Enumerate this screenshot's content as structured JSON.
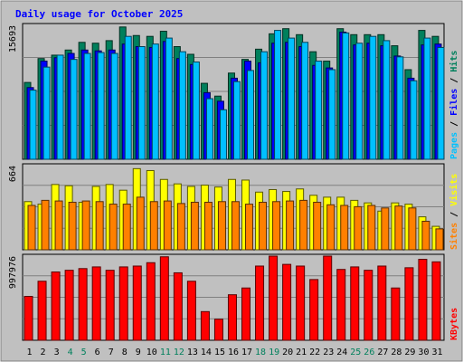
{
  "chart_data": {
    "type": "bar",
    "title": "Daily usage for October 2025",
    "categories": [
      "1",
      "2",
      "3",
      "4",
      "5",
      "6",
      "7",
      "8",
      "9",
      "10",
      "11",
      "12",
      "13",
      "14",
      "15",
      "16",
      "17",
      "18",
      "19",
      "20",
      "21",
      "22",
      "23",
      "24",
      "25",
      "26",
      "27",
      "28",
      "29",
      "30",
      "31"
    ],
    "weekend_days": [
      "4",
      "5",
      "11",
      "12",
      "18",
      "19",
      "25",
      "26"
    ],
    "colors": {
      "title": "#0000ff",
      "background": "#c0c0c0",
      "grid": "#808080",
      "hits": "#00805c",
      "files": "#0000ff",
      "pages": "#00c0ff",
      "visits": "#ffff00",
      "sites": "#ff8000",
      "kbytes": "#ff0000",
      "weekend_label": "#00805c",
      "weekday_label": "#000000"
    },
    "panels": [
      {
        "id": "hits-files-pages",
        "ymax_label": "15693",
        "ymax": 15693,
        "side_label": [
          "Pages",
          " / ",
          "Files",
          " / ",
          "Hits"
        ],
        "side_colors": [
          "#00c0ff",
          "#000000",
          "#0000ff",
          "#000000",
          "#00805c"
        ],
        "series": [
          {
            "name": "Hits",
            "values": [
              9000,
              11800,
              12200,
              12800,
              13700,
              13600,
              13900,
              15500,
              14500,
              14400,
              15000,
              13200,
              12300,
              8900,
              7400,
              10100,
              11700,
              12900,
              14700,
              15300,
              14600,
              12600,
              11500,
              15300,
              14600,
              14600,
              14600,
              13300,
              10500,
              15100,
              14400
            ]
          },
          {
            "name": "Files",
            "values": [
              8400,
              11500,
              11900,
              12400,
              12800,
              12700,
              12800,
              13500,
              13200,
              13100,
              13800,
              11800,
              11100,
              7800,
              6800,
              9500,
              11500,
              11300,
              13600,
              13700,
              13200,
              11000,
              10700,
              14900,
              13400,
              13600,
              13300,
              12100,
              9500,
              13400,
              13500
            ]
          },
          {
            "name": "Pages",
            "values": [
              8100,
              10800,
              12200,
              11700,
              12400,
              12500,
              12400,
              14400,
              13200,
              13500,
              14200,
              12600,
              11400,
              7100,
              5800,
              9100,
              10400,
              12600,
              15100,
              14200,
              13700,
              11500,
              10500,
              14800,
              13600,
              14400,
              13900,
              12000,
              9200,
              14200,
              13100
            ]
          }
        ]
      },
      {
        "id": "visits-sites",
        "ymax_label": "664",
        "ymax": 664,
        "side_label": [
          "Sites",
          " / ",
          "Visits"
        ],
        "side_colors": [
          "#ff8000",
          "#000000",
          "#ffff00"
        ],
        "series": [
          {
            "name": "Visits",
            "values": [
              380,
              360,
              515,
              505,
              375,
              500,
              515,
              470,
              640,
              625,
              555,
              520,
              500,
              510,
              495,
              555,
              550,
              455,
              475,
              460,
              480,
              430,
              415,
              415,
              390,
              370,
              305,
              370,
              360,
              260,
              185
            ]
          },
          {
            "name": "Sites",
            "values": [
              350,
              390,
              385,
              375,
              385,
              380,
              360,
              360,
              415,
              380,
              385,
              365,
              375,
              375,
              380,
              380,
              360,
              375,
              380,
              385,
              390,
              375,
              355,
              350,
              340,
              350,
              330,
              345,
              330,
              225,
              165
            ]
          }
        ]
      },
      {
        "id": "kbytes",
        "ymax_label": "997976",
        "ymax": 997976,
        "side_label": [
          "KBytes"
        ],
        "side_colors": [
          "#ff0000"
        ],
        "series": [
          {
            "name": "KBytes",
            "values": [
              520000,
              700000,
              810000,
              830000,
              850000,
              870000,
              830000,
              870000,
              880000,
              920000,
              990000,
              800000,
              700000,
              340000,
              250000,
              540000,
              620000,
              880000,
              1000000,
              900000,
              880000,
              720000,
              1000000,
              840000,
              870000,
              830000,
              880000,
              620000,
              860000,
              960000,
              930000
            ]
          }
        ]
      }
    ]
  }
}
